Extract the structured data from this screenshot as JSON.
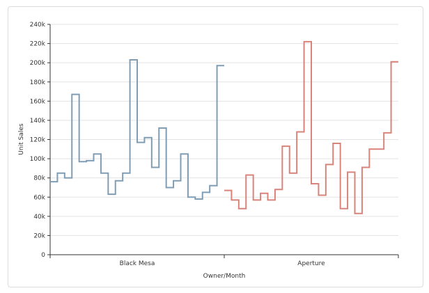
{
  "chart_data": {
    "type": "line",
    "interpolation": "step",
    "xlabel": "Owner/Month",
    "ylabel": "Unit Sales",
    "ylim": [
      0,
      240000
    ],
    "yticks": [
      0,
      20000,
      40000,
      60000,
      80000,
      100000,
      120000,
      140000,
      160000,
      180000,
      200000,
      220000,
      240000
    ],
    "ytick_labels": [
      "0",
      "20k",
      "40k",
      "60k",
      "80k",
      "100k",
      "120k",
      "140k",
      "160k",
      "180k",
      "200k",
      "220k",
      "240k"
    ],
    "grid": "horizontal",
    "legend": "none",
    "groups": [
      "Black Mesa",
      "Aperture"
    ],
    "series": [
      {
        "group": "Black Mesa",
        "color": "#7f9db5",
        "values": [
          76000,
          85000,
          80000,
          167000,
          97000,
          98000,
          105000,
          85000,
          63000,
          77000,
          85000,
          203000,
          117000,
          122000,
          91000,
          132000,
          70000,
          77000,
          105000,
          60000,
          58000,
          65000,
          72000,
          197000
        ]
      },
      {
        "group": "Aperture",
        "color": "#d9837a",
        "values": [
          67000,
          57000,
          48000,
          83000,
          57000,
          64000,
          57000,
          68000,
          113000,
          85000,
          128000,
          222000,
          74000,
          62000,
          94000,
          116000,
          48000,
          86000,
          43000,
          91000,
          110000,
          110000,
          127000,
          201000
        ]
      }
    ]
  }
}
